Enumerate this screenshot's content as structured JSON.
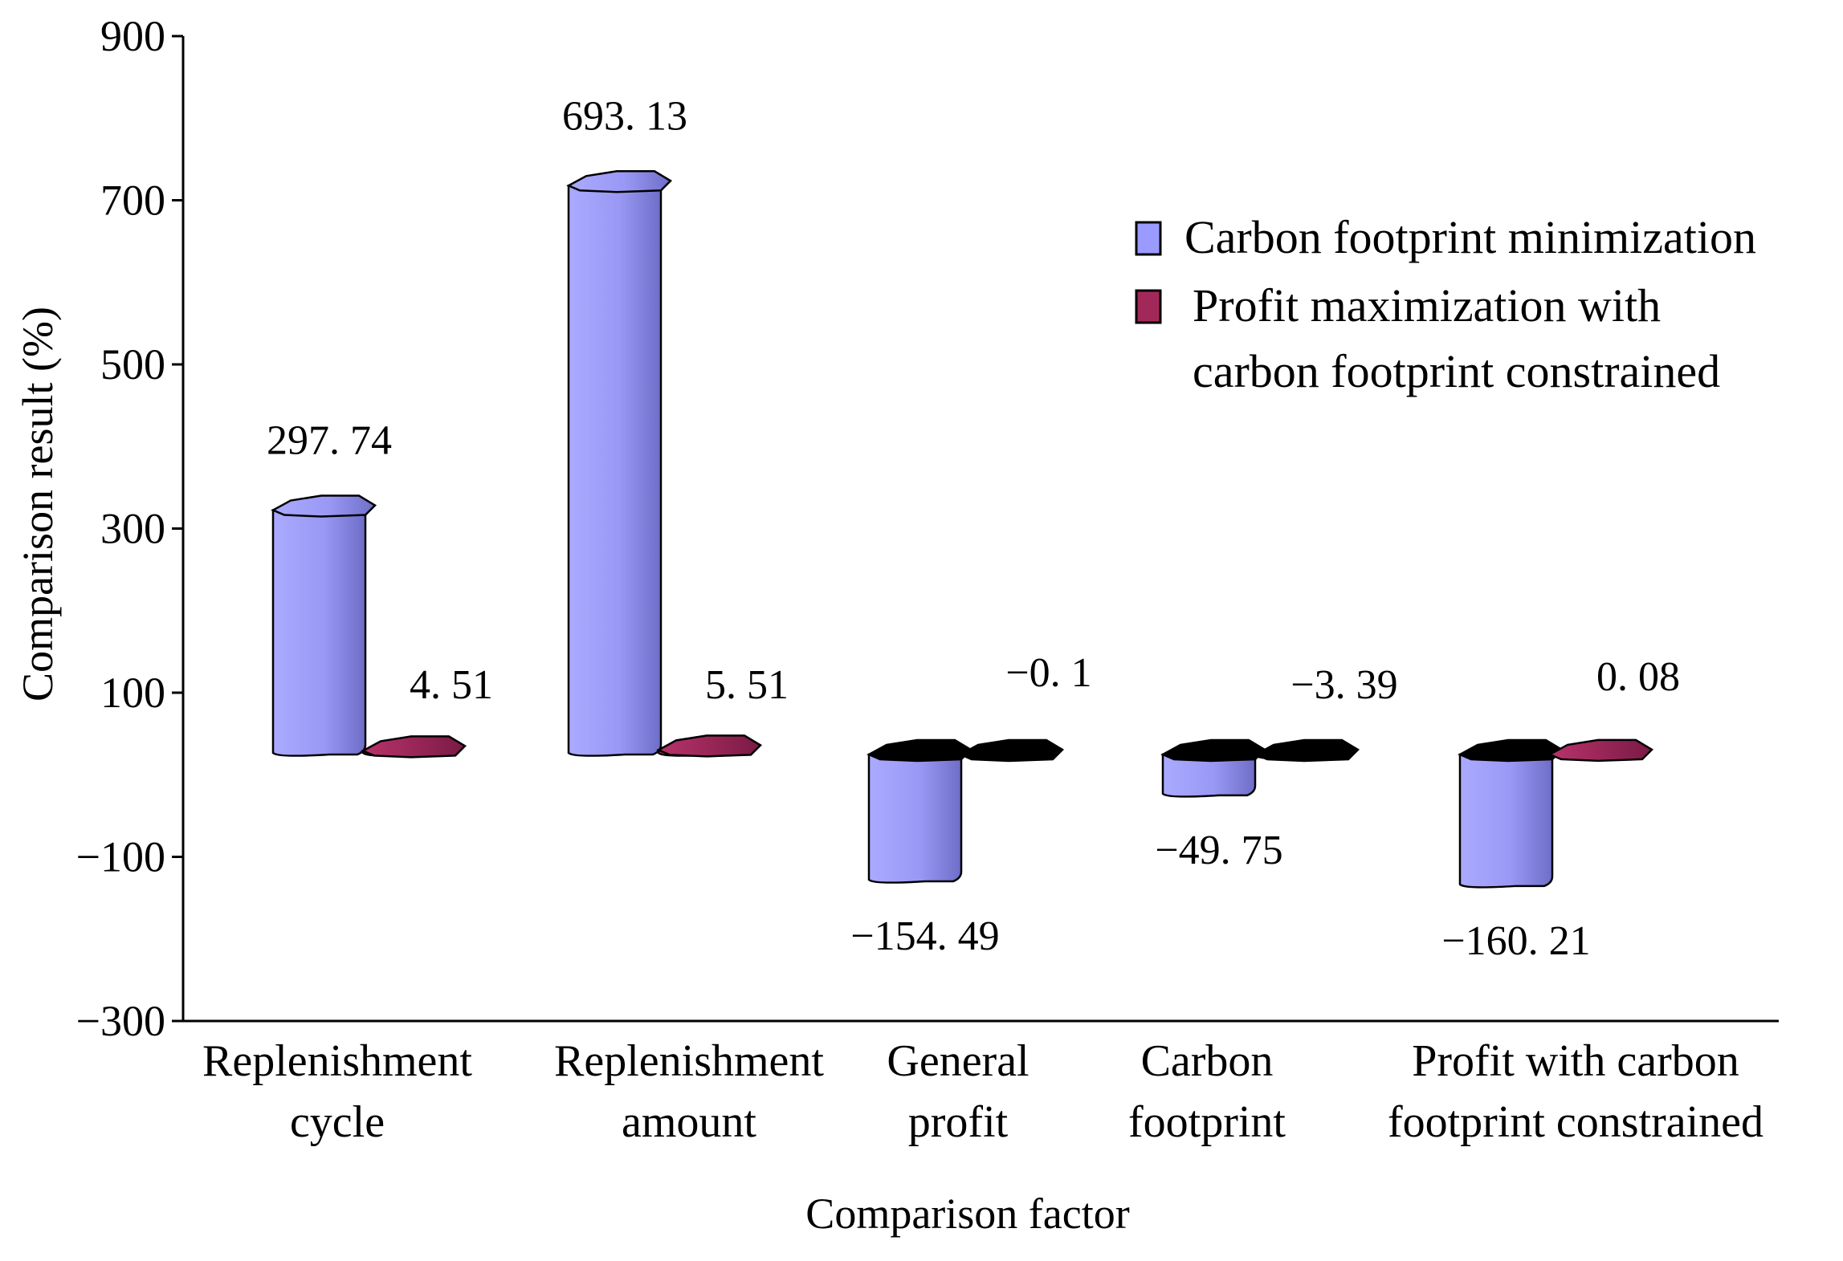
{
  "chart_data": {
    "type": "bar",
    "ylabel": "Comparison result (%)",
    "xlabel": "Comparison factor",
    "ylim": [
      -300,
      900
    ],
    "yticks": [
      {
        "value": 900,
        "label": "900"
      },
      {
        "value": 700,
        "label": "700"
      },
      {
        "value": 500,
        "label": "500"
      },
      {
        "value": 300,
        "label": "300"
      },
      {
        "value": 100,
        "label": "100"
      },
      {
        "value": -100,
        "label": "−100"
      },
      {
        "value": -300,
        "label": "−300"
      }
    ],
    "categories": [
      {
        "id": "replenishment-cycle",
        "lines": [
          "Replenishment",
          "cycle"
        ]
      },
      {
        "id": "replenishment-amount",
        "lines": [
          "Replenishment",
          "amount"
        ]
      },
      {
        "id": "general-profit",
        "lines": [
          "General",
          "profit"
        ]
      },
      {
        "id": "carbon-footprint",
        "lines": [
          "Carbon",
          "footprint"
        ]
      },
      {
        "id": "profit-with-carbon",
        "lines": [
          "Profit with carbon",
          "footprint constrained"
        ]
      }
    ],
    "series": [
      {
        "name": "Carbon footprint minimization",
        "color": "#9b9bff",
        "values": [
          297.74,
          693.13,
          -154.49,
          -49.75,
          -160.21
        ],
        "labels": [
          "297. 74",
          "693. 13",
          "−154. 49",
          "−49. 75",
          "−160. 21"
        ]
      },
      {
        "name": "Profit maximization with carbon footprint constrained",
        "color": "#a3285a",
        "values": [
          4.51,
          5.51,
          -0.1,
          -3.39,
          0.08
        ],
        "labels": [
          "4. 51",
          "5. 51",
          "−0. 1",
          "−3. 39",
          "0. 08"
        ]
      }
    ],
    "legend": {
      "position": "top-right",
      "entries": [
        {
          "lines": [
            "Carbon footprint minimization"
          ]
        },
        {
          "lines": [
            "Profit maximization with",
            "carbon footprint constrained"
          ]
        }
      ]
    }
  }
}
